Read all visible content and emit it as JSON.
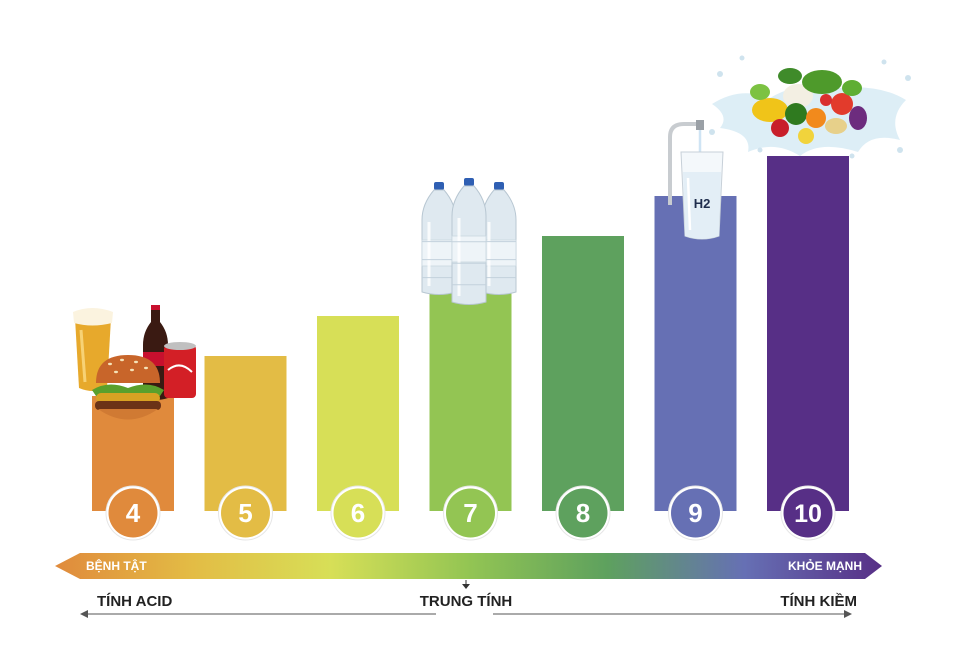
{
  "chart_data": {
    "type": "bar",
    "title": "",
    "categories": [
      "4",
      "5",
      "6",
      "7",
      "8",
      "9",
      "10"
    ],
    "values": [
      4,
      5,
      6,
      7,
      8,
      9,
      10
    ],
    "ylim": [
      0,
      11
    ],
    "colors": [
      "#e08a3c",
      "#e3bc45",
      "#d7df57",
      "#93c553",
      "#5ea15e",
      "#6670b4",
      "#572f86"
    ],
    "scale": {
      "left_label": "BỆNH TẬT",
      "right_label": "KHỎE MẠNH",
      "gradient": [
        "#e08a3c",
        "#e3bc45",
        "#d7df57",
        "#93c553",
        "#5ea15e",
        "#6670b4",
        "#572f86"
      ]
    },
    "zones": {
      "left": "TÍNH ACID",
      "center": "TRUNG TÍNH",
      "right": "TÍNH KIỀM"
    },
    "illustrations": {
      "bar_4": "junk-food-icon",
      "bar_7": "water-bottles-icon",
      "bar_9": "water-glass-icon",
      "bar_9_text": "H2",
      "bar_10": "vegetables-icon"
    }
  }
}
